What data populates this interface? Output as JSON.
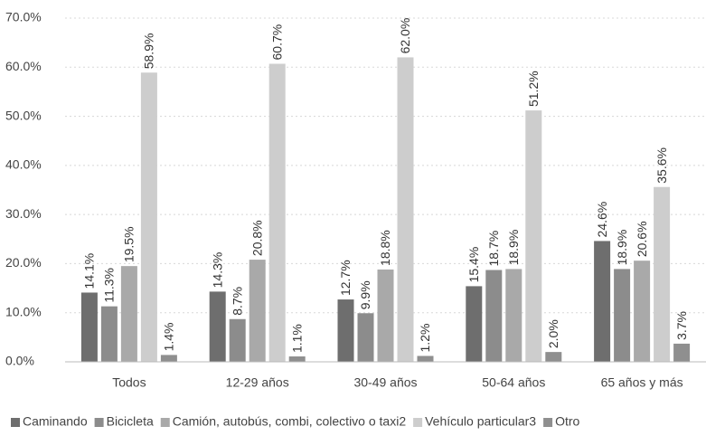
{
  "chart_data": {
    "type": "bar",
    "categories": [
      "Todos",
      "12-29 años",
      "30-49 años",
      "50-64 años",
      "65 años y más"
    ],
    "series": [
      {
        "name": "Caminando",
        "color": "#6e6e6e",
        "values": [
          14.1,
          14.3,
          12.7,
          15.4,
          24.6
        ],
        "value_labels": [
          "14.1%",
          "14.3%",
          "12.7%",
          "15.4%",
          "24.6%"
        ]
      },
      {
        "name": "Bicicleta",
        "color": "#8c8c8c",
        "values": [
          11.3,
          8.7,
          9.9,
          18.7,
          18.9
        ],
        "value_labels": [
          "11.3%",
          "8.7%",
          "9.9%",
          "18.7%",
          "18.9%"
        ]
      },
      {
        "name": "Camión, autobús, combi, colectivo o taxi2",
        "color": "#a9a9a9",
        "values": [
          19.5,
          20.8,
          18.8,
          18.9,
          20.6
        ],
        "value_labels": [
          "19.5%",
          "20.8%",
          "18.8%",
          "18.9%",
          "20.6%"
        ]
      },
      {
        "name": "Vehículo particular3",
        "color": "#cdcdcd",
        "values": [
          58.9,
          60.7,
          62.0,
          51.2,
          35.6
        ],
        "value_labels": [
          "58.9%",
          "60.7%",
          "62.0%",
          "51.2%",
          "35.6%"
        ]
      },
      {
        "name": "Otro",
        "color": "#8f8f8f",
        "values": [
          1.4,
          1.1,
          1.2,
          2.0,
          3.7
        ],
        "value_labels": [
          "1.4%",
          "1.1%",
          "1.2%",
          "2.0%",
          "3.7%"
        ]
      }
    ],
    "ylim": [
      0,
      70
    ],
    "yticks": [
      {
        "value": 0,
        "label": "0.0%"
      },
      {
        "value": 10,
        "label": "10.0%"
      },
      {
        "value": 20,
        "label": "20.0%"
      },
      {
        "value": 30,
        "label": "30.0%"
      },
      {
        "value": 40,
        "label": "40.0%"
      },
      {
        "value": 50,
        "label": "50.0%"
      },
      {
        "value": 60,
        "label": "60.0%"
      },
      {
        "value": 70,
        "label": "70.0%"
      }
    ],
    "grid": true,
    "legend": "bottom"
  }
}
